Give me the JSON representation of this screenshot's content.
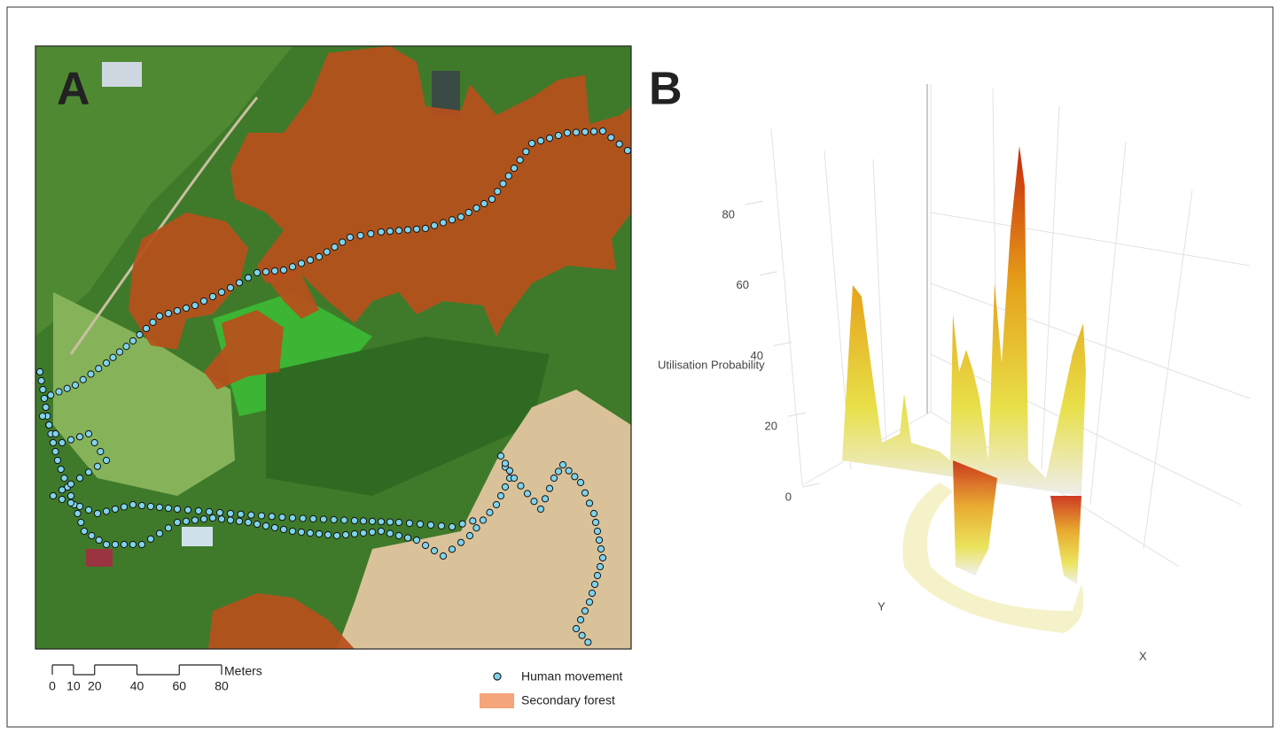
{
  "panel_a": {
    "label": "A",
    "scale_bar": {
      "ticks": [
        0,
        10,
        20,
        40,
        60,
        80
      ],
      "unit": "Meters"
    },
    "legend": [
      "Human movement",
      "Secondary forest"
    ]
  },
  "panel_b": {
    "label": "B",
    "z_axis_title": "Utilisation Probability",
    "zlim": [
      0,
      80
    ],
    "zticks": [
      0,
      20,
      40,
      60,
      80
    ],
    "x_axis_title": "X",
    "y_axis_title": "Y"
  }
}
